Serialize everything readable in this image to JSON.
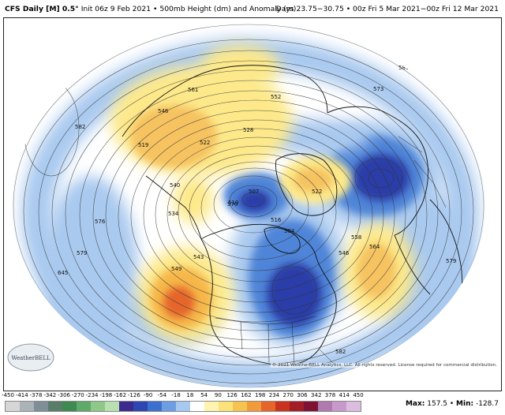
{
  "header": {
    "model": "CFS Daily [M] 0.5°",
    "init": "Init 06z 9 Feb 2021",
    "field": "500mb Height (dm) and Anomaly (m)",
    "valid": "Days 23.75−30.75 • 00z Fri 5 Mar 2021−00z Fri 12 Mar 2021"
  },
  "map": {
    "contour_labels": [
      "585",
      "582",
      "561",
      "552",
      "546",
      "528",
      "522",
      "519",
      "534",
      "540",
      "507",
      "510",
      "549",
      "543",
      "570",
      "579",
      "576",
      "645",
      "546",
      "558",
      "564",
      "573",
      "585",
      "579",
      "504",
      "516",
      "522",
      "582"
    ],
    "colors": {
      "positive_light": "#fde98a",
      "positive_mid": "#f6b74a",
      "positive_strong": "#e5652a",
      "negative_light": "#a9c9ef",
      "negative_mid": "#4f85d8",
      "negative_strong": "#2a3ea8"
    }
  },
  "logo": {
    "text": "WeatherBELL"
  },
  "copyright": "© 2021 WeatherBELL Analytics, LLC. All rights reserved. License required for commercial distribution.",
  "colorbar": {
    "ticks": [
      "-450",
      "-414",
      "-378",
      "-342",
      "-306",
      "-270",
      "-234",
      "-198",
      "-162",
      "-126",
      "-90",
      "-54",
      "-18",
      "18",
      "54",
      "90",
      "126",
      "162",
      "198",
      "234",
      "270",
      "306",
      "342",
      "378",
      "414",
      "450"
    ],
    "colors": [
      "#d6d6d6",
      "#aab3b8",
      "#7e8f97",
      "#5a7d6a",
      "#3e8a52",
      "#5fa96a",
      "#8ec98a",
      "#b9e0b0",
      "#3d2a8f",
      "#2d46b3",
      "#3b6fd0",
      "#6d9ee4",
      "#a7c8f0",
      "#ffffff",
      "#fff3b0",
      "#fde27a",
      "#f7c350",
      "#f29b3a",
      "#e5652a",
      "#c9321f",
      "#a31d27",
      "#7f1233",
      "#b07ab0",
      "#c89acb",
      "#dcbddf"
    ]
  },
  "stats": {
    "max_label": "Max:",
    "max": "157.5",
    "min_label": "Min:",
    "min": "-128.7"
  }
}
